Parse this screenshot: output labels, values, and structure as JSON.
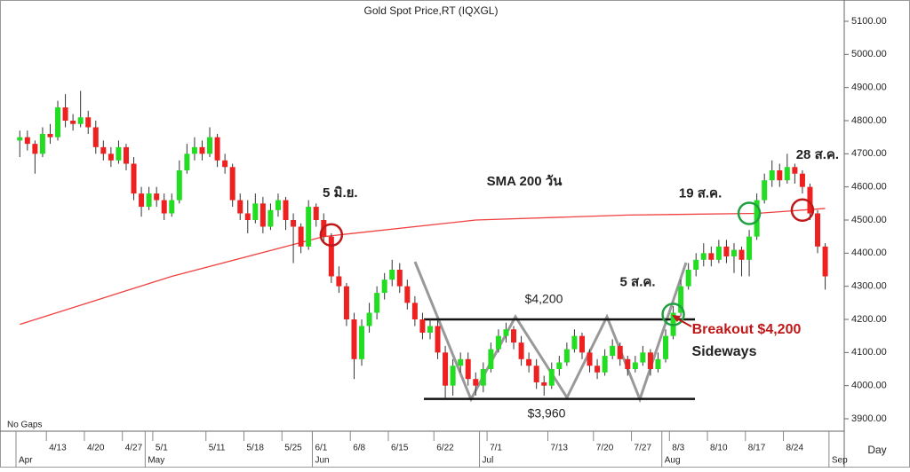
{
  "chart_data": {
    "type": "candlestick",
    "title": "Gold Spot Price,RT (IQXGL)",
    "up_color": "#22dd22",
    "down_color": "#ee2020",
    "ylim": [
      3900,
      5100
    ],
    "yticks": [
      {
        "value": 3900,
        "label": "3900.00"
      },
      {
        "value": 4000,
        "label": "4000.00"
      },
      {
        "value": 4100,
        "label": "4100.00"
      },
      {
        "value": 4200,
        "label": "4200.00"
      },
      {
        "value": 4300,
        "label": "4300.00"
      },
      {
        "value": 4400,
        "label": "4400.00"
      },
      {
        "value": 4500,
        "label": "4500.00"
      },
      {
        "value": 4600,
        "label": "4600.00"
      },
      {
        "value": 4700,
        "label": "4700.00"
      },
      {
        "value": 4800,
        "label": "4800.00"
      },
      {
        "value": 4900,
        "label": "4900.00"
      },
      {
        "value": 5000,
        "label": "5000.00"
      },
      {
        "value": 5100,
        "label": "5100.00"
      }
    ],
    "xticks": [
      {
        "value": 4,
        "label": "4/13"
      },
      {
        "value": 9,
        "label": "4/20"
      },
      {
        "value": 14,
        "label": "4/27"
      },
      {
        "value": 18,
        "label": "5/1"
      },
      {
        "value": 25,
        "label": "5/11"
      },
      {
        "value": 30,
        "label": "5/18"
      },
      {
        "value": 35,
        "label": "5/25"
      },
      {
        "value": 39,
        "label": "6/1"
      },
      {
        "value": 44,
        "label": "6/8"
      },
      {
        "value": 49,
        "label": "6/15"
      },
      {
        "value": 55,
        "label": "6/22"
      },
      {
        "value": 62,
        "label": "7/1"
      },
      {
        "value": 70,
        "label": "7/13"
      },
      {
        "value": 76,
        "label": "7/20"
      },
      {
        "value": 81,
        "label": "7/27"
      },
      {
        "value": 86,
        "label": "8/3"
      },
      {
        "value": 91,
        "label": "8/10"
      },
      {
        "value": 96,
        "label": "8/17"
      },
      {
        "value": 101,
        "label": "8/24"
      }
    ],
    "months": [
      {
        "value": 0,
        "label": "Apr"
      },
      {
        "value": 17,
        "label": "May"
      },
      {
        "value": 39,
        "label": "Jun"
      },
      {
        "value": 61,
        "label": "Jul"
      },
      {
        "value": 85,
        "label": "Aug"
      },
      {
        "value": 107,
        "label": "Sep"
      }
    ],
    "x_axis_label": "Day",
    "note": "No Gaps",
    "candles": [
      [
        4740,
        4770,
        4690,
        4750
      ],
      [
        4750,
        4770,
        4710,
        4730
      ],
      [
        4730,
        4740,
        4640,
        4700
      ],
      [
        4700,
        4780,
        4690,
        4760
      ],
      [
        4760,
        4790,
        4730,
        4750
      ],
      [
        4750,
        4860,
        4740,
        4840
      ],
      [
        4840,
        4880,
        4780,
        4800
      ],
      [
        4800,
        4820,
        4770,
        4790
      ],
      [
        4790,
        4890,
        4780,
        4810
      ],
      [
        4810,
        4830,
        4760,
        4780
      ],
      [
        4780,
        4800,
        4700,
        4720
      ],
      [
        4720,
        4740,
        4680,
        4700
      ],
      [
        4700,
        4720,
        4660,
        4680
      ],
      [
        4680,
        4740,
        4670,
        4720
      ],
      [
        4720,
        4730,
        4650,
        4670
      ],
      [
        4670,
        4690,
        4560,
        4580
      ],
      [
        4580,
        4600,
        4510,
        4540
      ],
      [
        4540,
        4600,
        4530,
        4580
      ],
      [
        4580,
        4600,
        4540,
        4560
      ],
      [
        4560,
        4580,
        4500,
        4520
      ],
      [
        4520,
        4580,
        4510,
        4560
      ],
      [
        4560,
        4680,
        4550,
        4650
      ],
      [
        4650,
        4730,
        4640,
        4700
      ],
      [
        4700,
        4750,
        4680,
        4720
      ],
      [
        4720,
        4740,
        4680,
        4700
      ],
      [
        4700,
        4780,
        4690,
        4750
      ],
      [
        4750,
        4760,
        4660,
        4680
      ],
      [
        4680,
        4700,
        4640,
        4660
      ],
      [
        4660,
        4670,
        4540,
        4560
      ],
      [
        4560,
        4580,
        4500,
        4520
      ],
      [
        4520,
        4560,
        4460,
        4500
      ],
      [
        4500,
        4580,
        4490,
        4550
      ],
      [
        4550,
        4570,
        4460,
        4480
      ],
      [
        4480,
        4550,
        4470,
        4530
      ],
      [
        4530,
        4580,
        4510,
        4560
      ],
      [
        4560,
        4570,
        4470,
        4500
      ],
      [
        4500,
        4520,
        4370,
        4480
      ],
      [
        4480,
        4490,
        4400,
        4420
      ],
      [
        4420,
        4560,
        4410,
        4540
      ],
      [
        4540,
        4550,
        4480,
        4500
      ],
      [
        4500,
        4520,
        4430,
        4450
      ],
      [
        4450,
        4460,
        4310,
        4330
      ],
      [
        4330,
        4360,
        4280,
        4300
      ],
      [
        4300,
        4310,
        4180,
        4200
      ],
      [
        4200,
        4220,
        4020,
        4080
      ],
      [
        4080,
        4200,
        4060,
        4180
      ],
      [
        4180,
        4250,
        4160,
        4220
      ],
      [
        4220,
        4300,
        4200,
        4280
      ],
      [
        4280,
        4340,
        4260,
        4320
      ],
      [
        4320,
        4380,
        4300,
        4350
      ],
      [
        4350,
        4370,
        4280,
        4300
      ],
      [
        4300,
        4320,
        4230,
        4250
      ],
      [
        4250,
        4270,
        4180,
        4200
      ],
      [
        4200,
        4220,
        4140,
        4160
      ],
      [
        4160,
        4200,
        4140,
        4180
      ],
      [
        4180,
        4200,
        4080,
        4100
      ],
      [
        4100,
        4120,
        3960,
        4000
      ],
      [
        4000,
        4080,
        3970,
        4060
      ],
      [
        4060,
        4100,
        4040,
        4080
      ],
      [
        4080,
        4100,
        4000,
        4020
      ],
      [
        4020,
        4040,
        3970,
        4000
      ],
      [
        4000,
        4070,
        3980,
        4050
      ],
      [
        4050,
        4130,
        4040,
        4110
      ],
      [
        4110,
        4170,
        4100,
        4150
      ],
      [
        4150,
        4190,
        4130,
        4170
      ],
      [
        4170,
        4180,
        4110,
        4130
      ],
      [
        4130,
        4150,
        4060,
        4080
      ],
      [
        4080,
        4100,
        4040,
        4060
      ],
      [
        4060,
        4080,
        3990,
        4010
      ],
      [
        4010,
        4030,
        3970,
        4000
      ],
      [
        4000,
        4070,
        3990,
        4050
      ],
      [
        4050,
        4090,
        4030,
        4070
      ],
      [
        4070,
        4130,
        4060,
        4110
      ],
      [
        4110,
        4170,
        4100,
        4150
      ],
      [
        4150,
        4160,
        4080,
        4100
      ],
      [
        4100,
        4110,
        4040,
        4060
      ],
      [
        4060,
        4080,
        4020,
        4040
      ],
      [
        4040,
        4110,
        4030,
        4090
      ],
      [
        4090,
        4140,
        4080,
        4120
      ],
      [
        4120,
        4130,
        4060,
        4080
      ],
      [
        4080,
        4090,
        4030,
        4050
      ],
      [
        4050,
        4090,
        4040,
        4070
      ],
      [
        4070,
        4120,
        4060,
        4100
      ],
      [
        4100,
        4110,
        4030,
        4050
      ],
      [
        4050,
        4100,
        4040,
        4080
      ],
      [
        4080,
        4170,
        4070,
        4150
      ],
      [
        4150,
        4240,
        4140,
        4220
      ],
      [
        4220,
        4320,
        4210,
        4300
      ],
      [
        4300,
        4370,
        4290,
        4350
      ],
      [
        4350,
        4400,
        4330,
        4380
      ],
      [
        4380,
        4430,
        4360,
        4400
      ],
      [
        4400,
        4420,
        4360,
        4380
      ],
      [
        4380,
        4440,
        4370,
        4420
      ],
      [
        4420,
        4440,
        4370,
        4390
      ],
      [
        4390,
        4430,
        4340,
        4410
      ],
      [
        4410,
        4420,
        4330,
        4380
      ],
      [
        4380,
        4470,
        4330,
        4450
      ],
      [
        4450,
        4580,
        4440,
        4560
      ],
      [
        4560,
        4640,
        4550,
        4620
      ],
      [
        4620,
        4680,
        4600,
        4650
      ],
      [
        4650,
        4670,
        4600,
        4620
      ],
      [
        4620,
        4700,
        4610,
        4660
      ],
      [
        4660,
        4670,
        4610,
        4640
      ],
      [
        4640,
        4650,
        4580,
        4600
      ],
      [
        4600,
        4610,
        4500,
        4520
      ],
      [
        4520,
        4530,
        4400,
        4420
      ],
      [
        4420,
        4430,
        4290,
        4330
      ]
    ],
    "sma": {
      "name": "SMA 200 วัน",
      "color": "#f04040",
      "x": [
        0,
        20,
        40,
        60,
        80,
        97,
        106
      ],
      "values": [
        4185,
        4330,
        4450,
        4500,
        4515,
        4520,
        4535
      ]
    },
    "levels": [
      {
        "value": 4200,
        "label": "$4,200"
      },
      {
        "value": 3960,
        "label": "$3,960"
      }
    ],
    "events": [
      {
        "label": "5 มิ.ย.",
        "x": 41,
        "y": 4455,
        "color": "#c01818"
      },
      {
        "label": "5 ส.ค.",
        "x": 86,
        "y": 4215,
        "color": "#20a040"
      },
      {
        "label": "19 ส.ค.",
        "x": 96,
        "y": 4520,
        "color": "#20a040"
      },
      {
        "label": "28 ส.ค.",
        "x": 103,
        "y": 4530,
        "color": "#c01818"
      }
    ],
    "breakout": "Breakout $4,200",
    "sideways": "Sideways"
  }
}
